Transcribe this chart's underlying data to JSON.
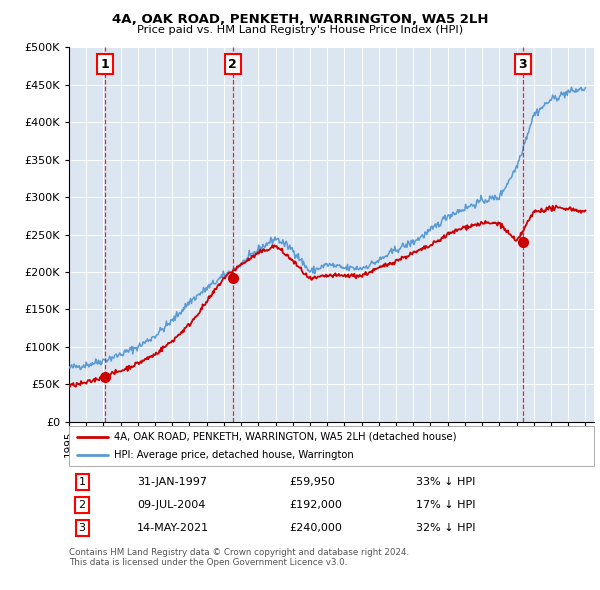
{
  "title": "4A, OAK ROAD, PENKETH, WARRINGTON, WA5 2LH",
  "subtitle": "Price paid vs. HM Land Registry's House Price Index (HPI)",
  "hpi_color": "#5b9bd5",
  "price_color": "#cc0000",
  "plot_bg_color": "#dce6f1",
  "ylim": [
    0,
    500000
  ],
  "yticks": [
    0,
    50000,
    100000,
    150000,
    200000,
    250000,
    300000,
    350000,
    400000,
    450000,
    500000
  ],
  "xlim_start": 1995.0,
  "xlim_end": 2025.5,
  "sales": [
    {
      "date_num": 1997.08,
      "price": 59950,
      "label": "1"
    },
    {
      "date_num": 2004.52,
      "price": 192000,
      "label": "2"
    },
    {
      "date_num": 2021.36,
      "price": 240000,
      "label": "3"
    }
  ],
  "legend_label_price": "4A, OAK ROAD, PENKETH, WARRINGTON, WA5 2LH (detached house)",
  "legend_label_hpi": "HPI: Average price, detached house, Warrington",
  "table_rows": [
    {
      "num": "1",
      "date": "31-JAN-1997",
      "price": "£59,950",
      "note": "33% ↓ HPI"
    },
    {
      "num": "2",
      "date": "09-JUL-2004",
      "price": "£192,000",
      "note": "17% ↓ HPI"
    },
    {
      "num": "3",
      "date": "14-MAY-2021",
      "price": "£240,000",
      "note": "32% ↓ HPI"
    }
  ],
  "footer": "Contains HM Land Registry data © Crown copyright and database right 2024.\nThis data is licensed under the Open Government Licence v3.0.",
  "hpi_knots_x": [
    1995,
    1996,
    1997,
    1998,
    1999,
    2000,
    2001,
    2002,
    2003,
    2004,
    2005,
    2006,
    2007,
    2008,
    2009,
    2010,
    2011,
    2012,
    2013,
    2014,
    2015,
    2016,
    2017,
    2018,
    2019,
    2020,
    2021,
    2022,
    2023,
    2024,
    2025
  ],
  "hpi_knots_y": [
    72000,
    76000,
    82000,
    90000,
    100000,
    115000,
    135000,
    160000,
    178000,
    195000,
    210000,
    230000,
    245000,
    230000,
    200000,
    210000,
    205000,
    205000,
    215000,
    230000,
    240000,
    255000,
    275000,
    285000,
    295000,
    300000,
    340000,
    410000,
    430000,
    440000,
    445000
  ],
  "price_knots_x": [
    1995,
    1996,
    1997,
    1998,
    1999,
    2000,
    2001,
    2002,
    2003,
    2004,
    2005,
    2006,
    2007,
    2008,
    2009,
    2010,
    2011,
    2012,
    2013,
    2014,
    2015,
    2016,
    2017,
    2018,
    2019,
    2020,
    2021,
    2022,
    2023,
    2024,
    2025
  ],
  "price_knots_y": [
    48000,
    52000,
    60000,
    68000,
    78000,
    90000,
    108000,
    130000,
    160000,
    192000,
    210000,
    225000,
    235000,
    215000,
    190000,
    195000,
    195000,
    195000,
    205000,
    215000,
    225000,
    235000,
    250000,
    260000,
    265000,
    265000,
    240000,
    280000,
    285000,
    285000,
    280000
  ]
}
